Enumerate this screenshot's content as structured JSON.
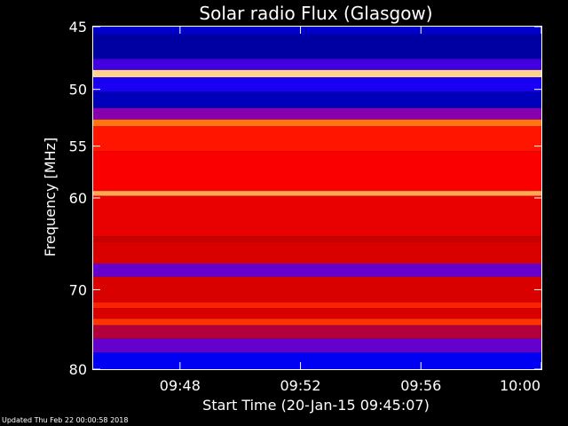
{
  "footer": {
    "updated": "Updated Thu Feb 22 00:00:58 2018"
  },
  "chart_data": {
    "type": "heatmap",
    "title": "Solar radio Flux (Glasgow)",
    "xlabel": "Start Time (20-Jan-15 09:45:07)",
    "ylabel": "Frequency [MHz]",
    "x_ticks": [
      "09:48",
      "09:52",
      "09:56",
      "10:00"
    ],
    "y_ticks": [
      45,
      50,
      55,
      60,
      70,
      80
    ],
    "y_scale": "log",
    "xlim": [
      "09:45:07",
      "10:00:00"
    ],
    "ylim": [
      45,
      80
    ],
    "colormap": [
      "#00007a",
      "#0000ff",
      "#8000c0",
      "#c80000",
      "#ff0000",
      "#ff6a00",
      "#ffe0a0"
    ],
    "bands": [
      {
        "f0": 45.0,
        "f1": 45.6,
        "level": 0.1
      },
      {
        "f0": 45.6,
        "f1": 47.5,
        "level": 0.05
      },
      {
        "f0": 47.5,
        "f1": 48.4,
        "level": 0.25
      },
      {
        "f0": 48.4,
        "f1": 49.0,
        "level": 0.98
      },
      {
        "f0": 49.0,
        "f1": 50.2,
        "level": 0.2
      },
      {
        "f0": 50.2,
        "f1": 51.6,
        "level": 0.08
      },
      {
        "f0": 51.6,
        "f1": 52.6,
        "level": 0.35
      },
      {
        "f0": 52.6,
        "f1": 53.2,
        "level": 0.85
      },
      {
        "f0": 53.2,
        "f1": 55.5,
        "level": 0.7
      },
      {
        "f0": 55.5,
        "f1": 59.3,
        "level": 0.65
      },
      {
        "f0": 59.3,
        "f1": 59.8,
        "level": 0.92
      },
      {
        "f0": 59.8,
        "f1": 64.0,
        "level": 0.6
      },
      {
        "f0": 64.0,
        "f1": 64.6,
        "level": 0.5
      },
      {
        "f0": 64.6,
        "f1": 67.0,
        "level": 0.55
      },
      {
        "f0": 67.0,
        "f1": 68.5,
        "level": 0.3
      },
      {
        "f0": 68.5,
        "f1": 71.5,
        "level": 0.55
      },
      {
        "f0": 71.5,
        "f1": 72.2,
        "level": 0.72
      },
      {
        "f0": 72.2,
        "f1": 73.5,
        "level": 0.55
      },
      {
        "f0": 73.5,
        "f1": 74.3,
        "level": 0.75
      },
      {
        "f0": 74.3,
        "f1": 76.0,
        "level": 0.45
      },
      {
        "f0": 76.0,
        "f1": 77.8,
        "level": 0.3
      },
      {
        "f0": 77.8,
        "f1": 80.0,
        "level": 0.15
      }
    ]
  }
}
